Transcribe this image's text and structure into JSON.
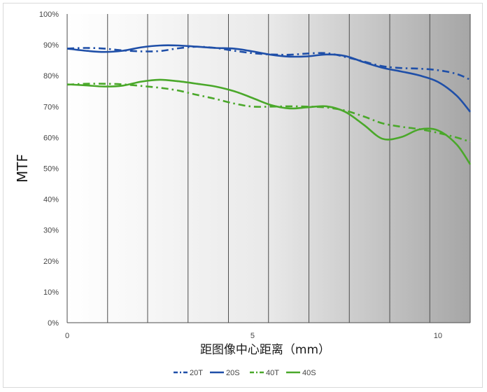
{
  "chart_data": {
    "type": "line",
    "title": "",
    "xlabel": "距图像中心距离（mm）",
    "ylabel": "MTF",
    "xlim": [
      0,
      10.87
    ],
    "ylim": [
      0,
      100
    ],
    "x_ticks": [
      {
        "value": 0,
        "label": "0"
      },
      {
        "value": 5,
        "label": "5"
      },
      {
        "value": 10,
        "label": "10"
      }
    ],
    "x_gridlines": [
      0,
      1.09,
      2.17,
      3.26,
      4.35,
      5.43,
      6.52,
      7.61,
      8.7,
      9.78,
      10.87
    ],
    "y_ticks": [
      {
        "value": 0,
        "label": "0%"
      },
      {
        "value": 10,
        "label": "10%"
      },
      {
        "value": 20,
        "label": "20%"
      },
      {
        "value": 30,
        "label": "30%"
      },
      {
        "value": 40,
        "label": "40%"
      },
      {
        "value": 50,
        "label": "50%"
      },
      {
        "value": 60,
        "label": "60%"
      },
      {
        "value": 70,
        "label": "70%"
      },
      {
        "value": 80,
        "label": "80%"
      },
      {
        "value": 90,
        "label": "90%"
      },
      {
        "value": 100,
        "label": "100%"
      }
    ],
    "grid": "vertical",
    "legend_position": "bottom",
    "series": [
      {
        "name": "20T",
        "color": "#1f4fa8",
        "dash": "dashdot",
        "points": [
          [
            0,
            88.8
          ],
          [
            0.5,
            89
          ],
          [
            1,
            88.8
          ],
          [
            1.5,
            88.2
          ],
          [
            2,
            87.9
          ],
          [
            2.5,
            88
          ],
          [
            3,
            88.9
          ],
          [
            3.5,
            89.4
          ],
          [
            4,
            89
          ],
          [
            4.5,
            88.1
          ],
          [
            5,
            87.3
          ],
          [
            5.5,
            86.9
          ],
          [
            6,
            86.8
          ],
          [
            6.5,
            87.2
          ],
          [
            7,
            87.3
          ],
          [
            7.5,
            86.1
          ],
          [
            8,
            84.6
          ],
          [
            8.5,
            83.1
          ],
          [
            9,
            82.5
          ],
          [
            9.5,
            82.3
          ],
          [
            10,
            81.8
          ],
          [
            10.5,
            80.6
          ],
          [
            10.87,
            78.7
          ]
        ]
      },
      {
        "name": "20S",
        "color": "#1f4fa8",
        "dash": "solid",
        "points": [
          [
            0,
            88.8
          ],
          [
            0.5,
            88.1
          ],
          [
            1,
            87.7
          ],
          [
            1.5,
            88.1
          ],
          [
            2,
            89.2
          ],
          [
            2.5,
            89.8
          ],
          [
            3,
            89.8
          ],
          [
            3.5,
            89.4
          ],
          [
            4,
            89
          ],
          [
            4.5,
            88.8
          ],
          [
            5,
            87.9
          ],
          [
            5.5,
            86.8
          ],
          [
            6,
            86.2
          ],
          [
            6.5,
            86.3
          ],
          [
            7,
            86.9
          ],
          [
            7.5,
            86.4
          ],
          [
            8,
            84.4
          ],
          [
            8.5,
            82.6
          ],
          [
            9,
            81.4
          ],
          [
            9.5,
            80.1
          ],
          [
            10,
            78
          ],
          [
            10.5,
            73.6
          ],
          [
            10.87,
            68.3
          ]
        ]
      },
      {
        "name": "40T",
        "color": "#4aa82a",
        "dash": "dashdot",
        "points": [
          [
            0,
            77.1
          ],
          [
            0.5,
            77.4
          ],
          [
            1,
            77.4
          ],
          [
            1.5,
            77.2
          ],
          [
            2,
            76.7
          ],
          [
            2.5,
            76.1
          ],
          [
            3,
            75.2
          ],
          [
            3.5,
            73.8
          ],
          [
            4,
            72.5
          ],
          [
            4.5,
            71
          ],
          [
            5,
            70
          ],
          [
            5.5,
            70
          ],
          [
            6,
            70.1
          ],
          [
            6.5,
            70
          ],
          [
            7,
            69.7
          ],
          [
            7.5,
            68.7
          ],
          [
            8,
            66.8
          ],
          [
            8.5,
            64.6
          ],
          [
            9,
            63.5
          ],
          [
            9.5,
            62.7
          ],
          [
            10,
            61.5
          ],
          [
            10.5,
            60
          ],
          [
            10.87,
            58.6
          ]
        ]
      },
      {
        "name": "40S",
        "color": "#4aa82a",
        "dash": "solid",
        "points": [
          [
            0,
            77.2
          ],
          [
            0.5,
            76.9
          ],
          [
            1,
            76.5
          ],
          [
            1.5,
            76.8
          ],
          [
            2,
            78.1
          ],
          [
            2.5,
            78.7
          ],
          [
            3,
            78.2
          ],
          [
            3.5,
            77.4
          ],
          [
            4,
            76.5
          ],
          [
            4.5,
            75
          ],
          [
            5,
            72.8
          ],
          [
            5.5,
            70.5
          ],
          [
            6,
            69.4
          ],
          [
            6.5,
            69.8
          ],
          [
            7,
            70.1
          ],
          [
            7.5,
            68.3
          ],
          [
            8,
            64.1
          ],
          [
            8.5,
            59.6
          ],
          [
            9,
            60.1
          ],
          [
            9.5,
            62.6
          ],
          [
            10,
            62.3
          ],
          [
            10.5,
            57.8
          ],
          [
            10.87,
            51.3
          ]
        ]
      }
    ]
  }
}
